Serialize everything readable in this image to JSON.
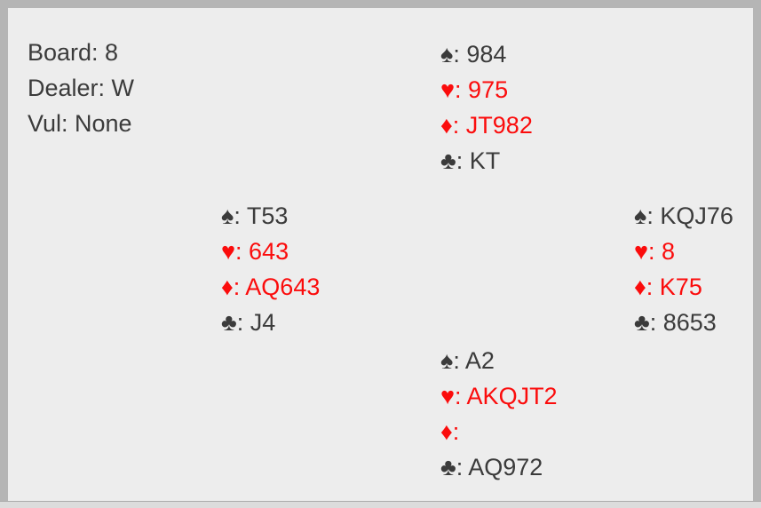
{
  "board_info": {
    "board": "Board: 8",
    "dealer": "Dealer: W",
    "vul": "Vul: None"
  },
  "suits": {
    "spade": "♠",
    "heart": "♥",
    "diamond": "♦",
    "club": "♣"
  },
  "ui": {
    "separator": ": "
  },
  "hands": {
    "north": {
      "spades": "984",
      "hearts": "975",
      "diamonds": "JT982",
      "clubs": "KT"
    },
    "west": {
      "spades": "T53",
      "hearts": "643",
      "diamonds": "AQ643",
      "clubs": "J4"
    },
    "east": {
      "spades": "KQJ76",
      "hearts": "8",
      "diamonds": "K75",
      "clubs": "8653"
    },
    "south": {
      "spades": "A2",
      "hearts": "AKQJT2",
      "diamonds": "",
      "clubs": "AQ972"
    }
  },
  "colors": {
    "red_suit": "#fb0c0c",
    "black_suit": "#3b3b3b",
    "background": "#ededed",
    "frame_border": "#b5b5b5",
    "scrollbar_track": "#dcdcdc"
  }
}
